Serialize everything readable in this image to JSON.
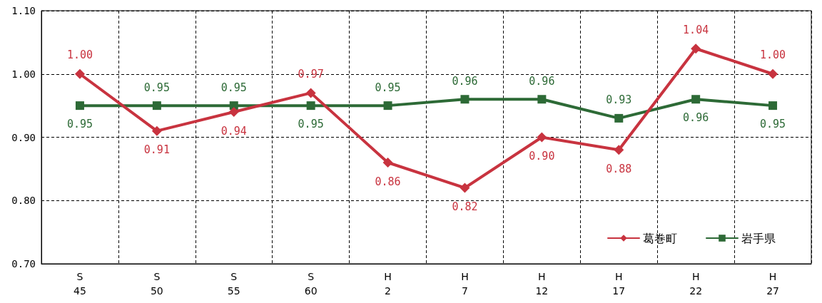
{
  "chart_data": {
    "type": "line",
    "categories": [
      "S\n45",
      "S\n50",
      "S\n55",
      "S\n60",
      "H\n2",
      "H\n7",
      "H\n12",
      "H\n17",
      "H\n22",
      "H\n27"
    ],
    "series": [
      {
        "name": "葛巻町",
        "color": "#c8333f",
        "marker": "diamond",
        "values": [
          1.0,
          0.91,
          0.94,
          0.97,
          0.86,
          0.82,
          0.9,
          0.88,
          1.04,
          1.0
        ],
        "value_labels": [
          "1.00",
          "0.91",
          "0.94",
          "0.97",
          "0.86",
          "0.82",
          "0.90",
          "0.88",
          "1.04",
          "1.00"
        ]
      },
      {
        "name": "岩手県",
        "color": "#2d6a36",
        "marker": "square",
        "values": [
          0.95,
          0.95,
          0.95,
          0.95,
          0.95,
          0.96,
          0.96,
          0.93,
          0.96,
          0.95
        ],
        "value_labels": [
          "0.95",
          "0.95",
          "0.95",
          "0.95",
          "0.95",
          "0.96",
          "0.96",
          "0.93",
          "0.96",
          "0.95"
        ]
      }
    ],
    "ylim": [
      0.7,
      1.1
    ],
    "yticks": [
      {
        "value": 0.7,
        "label": "0.70"
      },
      {
        "value": 0.8,
        "label": "0.80"
      },
      {
        "value": 0.9,
        "label": "0.90"
      },
      {
        "value": 1.0,
        "label": "1.00"
      },
      {
        "value": 1.1,
        "label": "1.10"
      }
    ],
    "grid": true,
    "legend": "bottom right",
    "line_style": "solid"
  }
}
